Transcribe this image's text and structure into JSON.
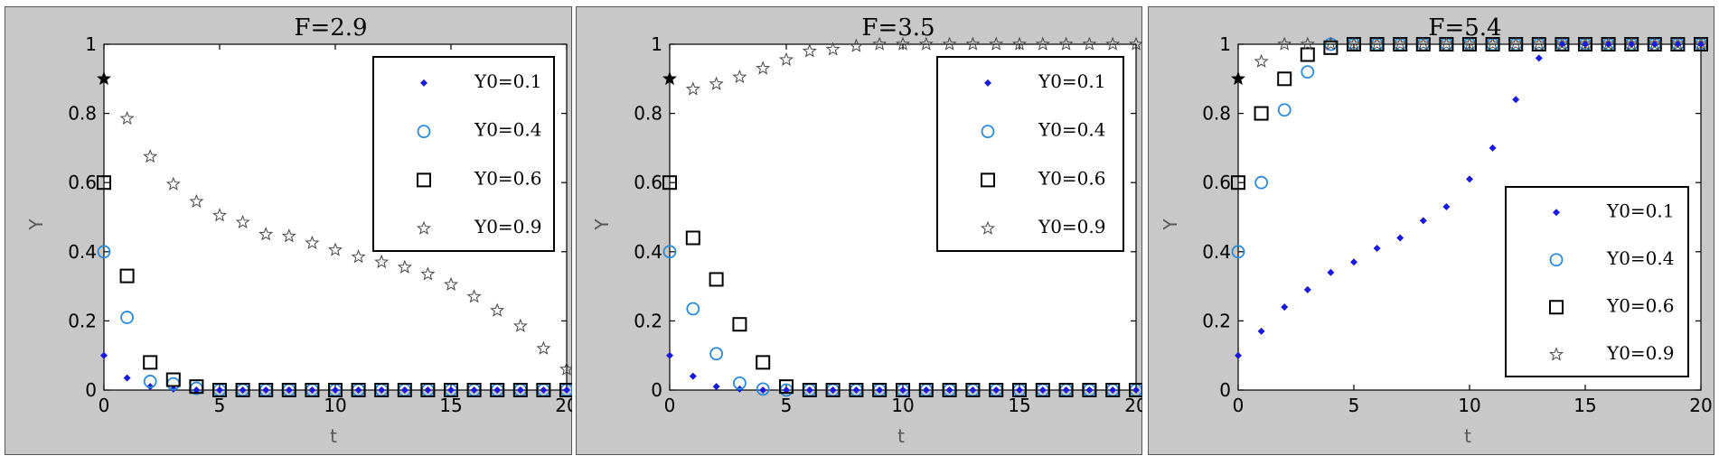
{
  "chart_data": [
    {
      "type": "scatter",
      "title": "F=2.9",
      "xlabel": "t",
      "ylabel": "Y",
      "xlim": [
        0,
        20
      ],
      "ylim": [
        0,
        1
      ],
      "xticks": [
        0,
        5,
        10,
        15,
        20
      ],
      "yticks": [
        0,
        0.2,
        0.4,
        0.6,
        0.8,
        1
      ],
      "ytick_labels": [
        "0",
        "0.2",
        "0.4",
        "0.6",
        "0.8",
        "1"
      ],
      "legend_position": "top-right",
      "x": [
        0,
        1,
        2,
        3,
        4,
        5,
        6,
        7,
        8,
        9,
        10,
        11,
        12,
        13,
        14,
        15,
        16,
        17,
        18,
        19,
        20
      ],
      "series": [
        {
          "name": "Y0=0.1",
          "legend_label": "Y0=0.1",
          "marker": "diamond",
          "color": "#1a1adf",
          "values": [
            0.1,
            0.035,
            0.01,
            0.003,
            0,
            0,
            0,
            0,
            0,
            0,
            0,
            0,
            0,
            0,
            0,
            0,
            0,
            0,
            0,
            0,
            0
          ]
        },
        {
          "name": "Y0=0.4",
          "legend_label": "Y0=0.4",
          "marker": "circle",
          "color": "#2a8ad8",
          "values": [
            0.4,
            0.21,
            0.025,
            0.018,
            0.005,
            0,
            0,
            0,
            0,
            0,
            0,
            0,
            0,
            0,
            0,
            0,
            0,
            0,
            0,
            0,
            0
          ]
        },
        {
          "name": "Y0=0.6",
          "legend_label": "Y0=0.6",
          "marker": "square",
          "color": "#000000",
          "values": [
            0.6,
            0.33,
            0.08,
            0.03,
            0.01,
            0,
            0,
            0,
            0,
            0,
            0,
            0,
            0,
            0,
            0,
            0,
            0,
            0,
            0,
            0,
            0
          ]
        },
        {
          "name": "Y0=0.9",
          "legend_label": "Y0=0.9",
          "marker": "star",
          "color": "#444444",
          "values": [
            0.9,
            0.785,
            0.675,
            0.595,
            0.545,
            0.505,
            0.485,
            0.45,
            0.445,
            0.425,
            0.405,
            0.385,
            0.37,
            0.355,
            0.335,
            0.305,
            0.27,
            0.23,
            0.185,
            0.12,
            0.06
          ]
        }
      ]
    },
    {
      "type": "scatter",
      "title": "F=3.5",
      "xlabel": "t",
      "ylabel": "Y",
      "xlim": [
        0,
        20
      ],
      "ylim": [
        0,
        1
      ],
      "xticks": [
        0,
        5,
        10,
        15,
        20
      ],
      "yticks": [
        0,
        0.2,
        0.4,
        0.6,
        0.8,
        1
      ],
      "ytick_labels": [
        "0",
        "0.2",
        "0.4",
        "0.6",
        "0.8",
        "1"
      ],
      "legend_position": "top-right",
      "x": [
        0,
        1,
        2,
        3,
        4,
        5,
        6,
        7,
        8,
        9,
        10,
        11,
        12,
        13,
        14,
        15,
        16,
        17,
        18,
        19,
        20
      ],
      "series": [
        {
          "name": "Y0=0.1",
          "legend_label": "Y0=0.1",
          "marker": "diamond",
          "color": "#1a1adf",
          "values": [
            0.1,
            0.04,
            0.01,
            0.003,
            0,
            0,
            0,
            0,
            0,
            0,
            0,
            0,
            0,
            0,
            0,
            0,
            0,
            0,
            0,
            0,
            0
          ]
        },
        {
          "name": "Y0=0.4",
          "legend_label": "Y0=0.4",
          "marker": "circle",
          "color": "#2a8ad8",
          "values": [
            0.4,
            0.235,
            0.105,
            0.02,
            0.003,
            0,
            0,
            0,
            0,
            0,
            0,
            0,
            0,
            0,
            0,
            0,
            0,
            0,
            0,
            0,
            0
          ]
        },
        {
          "name": "Y0=0.6",
          "legend_label": "Y0=0.6",
          "marker": "square",
          "color": "#000000",
          "values": [
            0.6,
            0.44,
            0.32,
            0.19,
            0.08,
            0.01,
            0,
            0,
            0,
            0,
            0,
            0,
            0,
            0,
            0,
            0,
            0,
            0,
            0,
            0,
            0
          ]
        },
        {
          "name": "Y0=0.9",
          "legend_label": "Y0=0.9",
          "marker": "star",
          "color": "#444444",
          "values": [
            0.9,
            0.87,
            0.885,
            0.905,
            0.93,
            0.955,
            0.98,
            0.985,
            0.995,
            1,
            1,
            1,
            1,
            1,
            1,
            1,
            1,
            1,
            1,
            1,
            1
          ]
        }
      ]
    },
    {
      "type": "scatter",
      "title": "F=5.4",
      "xlabel": "t",
      "ylabel": "Y",
      "xlim": [
        0,
        20
      ],
      "ylim": [
        0,
        1
      ],
      "xticks": [
        0,
        5,
        10,
        15,
        20
      ],
      "yticks": [
        0,
        0.2,
        0.4,
        0.6,
        0.8,
        1
      ],
      "ytick_labels": [
        "0",
        "0.2",
        "0.4",
        "0.6",
        "0.8",
        "1"
      ],
      "legend_position": "right",
      "x": [
        0,
        1,
        2,
        3,
        4,
        5,
        6,
        7,
        8,
        9,
        10,
        11,
        12,
        13,
        14,
        15,
        16,
        17,
        18,
        19,
        20
      ],
      "series": [
        {
          "name": "Y0=0.1",
          "legend_label": "Y0=0.1",
          "marker": "diamond",
          "color": "#1a1adf",
          "values": [
            0.1,
            0.17,
            0.24,
            0.29,
            0.34,
            0.37,
            0.41,
            0.44,
            0.49,
            0.53,
            0.61,
            0.7,
            0.84,
            0.96,
            1,
            1,
            1,
            1,
            1,
            1,
            1
          ]
        },
        {
          "name": "Y0=0.4",
          "legend_label": "Y0=0.4",
          "marker": "circle",
          "color": "#2a8ad8",
          "values": [
            0.4,
            0.6,
            0.81,
            0.92,
            1,
            1,
            1,
            1,
            1,
            1,
            1,
            1,
            1,
            1,
            1,
            1,
            1,
            1,
            1,
            1,
            1
          ]
        },
        {
          "name": "Y0=0.6",
          "legend_label": "Y0=0.6",
          "marker": "square",
          "color": "#000000",
          "values": [
            0.6,
            0.8,
            0.9,
            0.97,
            0.99,
            1,
            1,
            1,
            1,
            1,
            1,
            1,
            1,
            1,
            1,
            1,
            1,
            1,
            1,
            1,
            1
          ]
        },
        {
          "name": "Y0=0.9",
          "legend_label": "Y0=0.9",
          "marker": "star",
          "color": "#444444",
          "values": [
            0.9,
            0.95,
            1,
            1,
            1,
            1,
            1,
            1,
            1,
            1,
            1,
            1,
            1,
            1,
            1,
            1,
            1,
            1,
            1,
            1,
            1
          ]
        }
      ]
    }
  ]
}
